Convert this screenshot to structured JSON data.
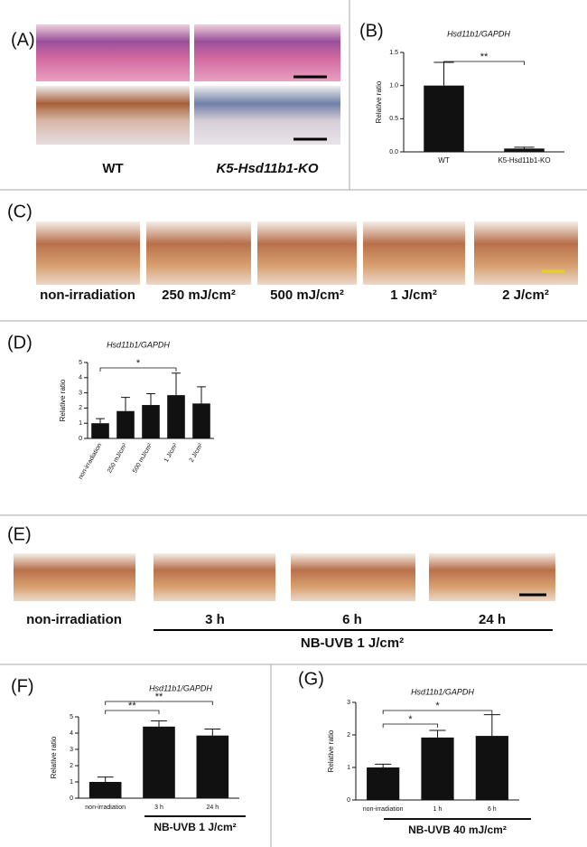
{
  "panels": {
    "A": {
      "letter": "(A)",
      "labels": [
        "WT",
        "K5-Hsd11b1-KO"
      ]
    },
    "B": {
      "letter": "(B)"
    },
    "C": {
      "letter": "(C)",
      "labels": [
        "non-irradiation",
        "250 mJ/cm²",
        "500 mJ/cm²",
        "1 J/cm²",
        "2 J/cm²"
      ]
    },
    "D": {
      "letter": "(D)"
    },
    "E": {
      "letter": "(E)",
      "labels": [
        "non-irradiation",
        "3 h",
        "6 h",
        "24 h"
      ],
      "group_label": "NB-UVB 1 J/cm²"
    },
    "F": {
      "letter": "(F)"
    },
    "G": {
      "letter": "(G)"
    }
  },
  "chart_data": [
    {
      "type": "bar",
      "title": "Hsd11b1/GAPDH",
      "ylabel": "Relative ratio",
      "categories": [
        "WT",
        "K5-Hsd11b1-KO"
      ],
      "values": [
        1.0,
        0.05
      ],
      "errors": [
        0.35,
        0.02
      ],
      "color": "#111111",
      "ylim": [
        0,
        1.5
      ],
      "yticks": [
        {
          "value": 0,
          "label": "0.0"
        },
        {
          "value": 0.5,
          "label": "0.5"
        },
        {
          "value": 1,
          "label": "1.0"
        },
        {
          "value": 1.5,
          "label": "1.5"
        }
      ],
      "annotations": [
        "**"
      ]
    },
    {
      "type": "bar",
      "title": "Hsd11b1/GAPDH",
      "ylabel": "Relative ratio",
      "categories": [
        "non-irradiation",
        "250 mJ/cm²",
        "500 mJ/cm²",
        "1 J/cm²",
        "2 J/cm²"
      ],
      "values": [
        1.0,
        1.8,
        2.2,
        2.85,
        2.3
      ],
      "errors": [
        0.3,
        0.9,
        0.75,
        1.45,
        1.1
      ],
      "color": "#111111",
      "ylim": [
        0,
        5
      ],
      "yticks": [
        0,
        1,
        2,
        3,
        4,
        5
      ],
      "annotations": [
        "*"
      ]
    },
    {
      "type": "bar",
      "title": "Hsd11b1/GAPDH",
      "ylabel": "Relative ratio",
      "categories": [
        "non-irradiation",
        "3 h",
        "24 h"
      ],
      "values": [
        1.0,
        4.4,
        3.85
      ],
      "errors": [
        0.3,
        0.35,
        0.4
      ],
      "color": "#111111",
      "ylim": [
        0,
        5
      ],
      "yticks": [
        0,
        1,
        2,
        3,
        4,
        5
      ],
      "annotations": [
        "**",
        "**"
      ],
      "group_label": "NB-UVB 1 J/cm²"
    },
    {
      "type": "bar",
      "title": "Hsd11b1/GAPDH",
      "ylabel": "Relative ratio",
      "categories": [
        "non-irradiation",
        "1 h",
        "6 h"
      ],
      "values": [
        1.0,
        1.92,
        1.97
      ],
      "errors": [
        0.1,
        0.22,
        0.65
      ],
      "color": "#111111",
      "ylim": [
        0,
        3
      ],
      "yticks": [
        0,
        1,
        2,
        3
      ],
      "annotations": [
        "*",
        "*"
      ],
      "group_label": "NB-UVB 40 mJ/cm²"
    }
  ]
}
